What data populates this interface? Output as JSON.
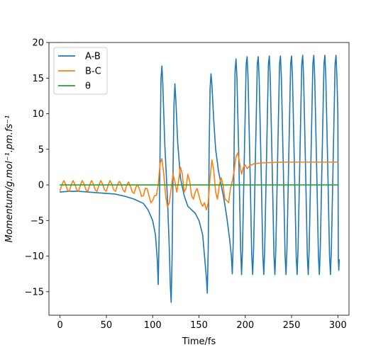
{
  "colors": {
    "series_A_B": "#1f77b4",
    "series_B_C": "#ff7f0e",
    "series_theta": "#2ca02c"
  },
  "chart_data": {
    "type": "line",
    "title": "",
    "xlabel": "Time/fs",
    "ylabel": "Momentum/g.mol⁻¹.pm.fs⁻¹",
    "xlim": [
      -12,
      312
    ],
    "ylim": [
      -18.3,
      20
    ],
    "x_ticks": [
      0,
      50,
      100,
      150,
      200,
      250,
      300
    ],
    "y_ticks": [
      -15,
      -10,
      -5,
      0,
      5,
      10,
      15,
      20
    ],
    "x_tick_labels": [
      "0",
      "50",
      "100",
      "150",
      "200",
      "250",
      "300"
    ],
    "y_tick_labels": [
      "−15",
      "−10",
      "−5",
      "0",
      "5",
      "10",
      "15",
      "20"
    ],
    "grid": false,
    "legend": {
      "placement": "upper-left",
      "entries": [
        "A-B",
        "B-C",
        "θ"
      ]
    },
    "series": [
      {
        "name": "A-B",
        "color": "#1f77b4",
        "points": [
          [
            0,
            -1.0
          ],
          [
            10,
            -0.9
          ],
          [
            20,
            -0.9
          ],
          [
            30,
            -1.0
          ],
          [
            40,
            -1.1
          ],
          [
            50,
            -1.2
          ],
          [
            60,
            -1.3
          ],
          [
            70,
            -1.6
          ],
          [
            80,
            -2.0
          ],
          [
            90,
            -2.6
          ],
          [
            95,
            -3.5
          ],
          [
            100,
            -5.0
          ],
          [
            103,
            -7.0
          ],
          [
            105,
            -10.5
          ],
          [
            106,
            -14.0
          ],
          [
            107,
            -7.0
          ],
          [
            108,
            5.0
          ],
          [
            109,
            15.0
          ],
          [
            110,
            16.7
          ],
          [
            111,
            14.0
          ],
          [
            113,
            6.0
          ],
          [
            116,
            -2.0
          ],
          [
            118,
            -9.0
          ],
          [
            119,
            -14.0
          ],
          [
            120,
            -16.5
          ],
          [
            121,
            -10.0
          ],
          [
            122,
            2.0
          ],
          [
            123,
            11.0
          ],
          [
            124,
            14.2
          ],
          [
            125,
            12.0
          ],
          [
            127,
            6.0
          ],
          [
            130,
            1.0
          ],
          [
            134,
            -1.5
          ],
          [
            138,
            -3.0
          ],
          [
            142,
            -3.5
          ],
          [
            146,
            -4.0
          ],
          [
            150,
            -5.0
          ],
          [
            154,
            -7.0
          ],
          [
            156,
            -10.0
          ],
          [
            158,
            -13.0
          ],
          [
            159,
            -15.2
          ],
          [
            160,
            -9.0
          ],
          [
            161,
            5.0
          ],
          [
            162,
            13.5
          ],
          [
            163,
            15.6
          ],
          [
            164,
            14.0
          ],
          [
            166,
            9.0
          ],
          [
            168,
            5.0
          ],
          [
            171,
            2.0
          ],
          [
            174,
            0.0
          ],
          [
            177,
            -2.0
          ],
          [
            180,
            -4.5
          ],
          [
            183,
            -7.5
          ],
          [
            185,
            -10.0
          ],
          [
            186,
            -12.5
          ],
          [
            187,
            -8.0
          ],
          [
            188,
            6.0
          ],
          [
            189,
            16.0
          ],
          [
            190,
            17.7
          ],
          [
            191,
            15.0
          ],
          [
            193,
            4.0
          ],
          [
            195,
            -9.0
          ],
          [
            196,
            -12.6
          ],
          [
            197,
            -9.0
          ],
          [
            199,
            4.0
          ],
          [
            201,
            17.0
          ],
          [
            202,
            18.0
          ],
          [
            203,
            15.0
          ],
          [
            205,
            3.0
          ],
          [
            207,
            -10.0
          ],
          [
            208,
            -12.6
          ],
          [
            209,
            -9.0
          ],
          [
            211,
            4.0
          ],
          [
            213,
            17.0
          ],
          [
            214,
            18.0
          ],
          [
            215,
            15.0
          ],
          [
            217,
            3.0
          ],
          [
            219,
            -10.0
          ],
          [
            220,
            -12.6
          ],
          [
            221,
            -9.0
          ],
          [
            223,
            4.0
          ],
          [
            225,
            17.0
          ],
          [
            226,
            18.1
          ],
          [
            227,
            15.0
          ],
          [
            229,
            3.0
          ],
          [
            231,
            -10.0
          ],
          [
            232,
            -12.6
          ],
          [
            233,
            -9.0
          ],
          [
            235,
            4.0
          ],
          [
            237,
            17.0
          ],
          [
            238,
            18.1
          ],
          [
            239,
            15.0
          ],
          [
            241,
            3.0
          ],
          [
            243,
            -10.0
          ],
          [
            244,
            -12.6
          ],
          [
            245,
            -9.0
          ],
          [
            247,
            4.0
          ],
          [
            249,
            17.0
          ],
          [
            250,
            18.1
          ],
          [
            251,
            15.0
          ],
          [
            253,
            3.0
          ],
          [
            255,
            -10.0
          ],
          [
            256,
            -12.6
          ],
          [
            257,
            -9.0
          ],
          [
            259,
            4.0
          ],
          [
            261,
            17.0
          ],
          [
            262,
            18.2
          ],
          [
            263,
            15.0
          ],
          [
            265,
            3.0
          ],
          [
            267,
            -10.0
          ],
          [
            268,
            -12.6
          ],
          [
            269,
            -9.0
          ],
          [
            271,
            4.0
          ],
          [
            273,
            17.0
          ],
          [
            274,
            18.2
          ],
          [
            275,
            15.0
          ],
          [
            277,
            3.0
          ],
          [
            279,
            -10.0
          ],
          [
            280,
            -12.6
          ],
          [
            281,
            -9.0
          ],
          [
            283,
            4.0
          ],
          [
            285,
            17.0
          ],
          [
            286,
            18.2
          ],
          [
            287,
            15.0
          ],
          [
            289,
            3.0
          ],
          [
            291,
            -10.0
          ],
          [
            292,
            -12.6
          ],
          [
            293,
            -9.0
          ],
          [
            295,
            4.0
          ],
          [
            297,
            17.0
          ],
          [
            298,
            18.2
          ],
          [
            299,
            15.0
          ],
          [
            300,
            10.0
          ],
          [
            300.5,
            -10.5
          ],
          [
            301,
            -12.0
          ],
          [
            301.5,
            -10.5
          ]
        ]
      },
      {
        "name": "B-C",
        "color": "#ff7f0e",
        "points": [
          [
            0,
            -0.8
          ],
          [
            2,
            0.0
          ],
          [
            4,
            0.6
          ],
          [
            6,
            0.1
          ],
          [
            8,
            -0.7
          ],
          [
            10,
            -0.9
          ],
          [
            12,
            0.0
          ],
          [
            14,
            0.6
          ],
          [
            16,
            0.1
          ],
          [
            18,
            -0.7
          ],
          [
            20,
            -0.9
          ],
          [
            22,
            0.0
          ],
          [
            24,
            0.6
          ],
          [
            26,
            0.1
          ],
          [
            28,
            -0.7
          ],
          [
            30,
            -0.9
          ],
          [
            32,
            0.0
          ],
          [
            34,
            0.6
          ],
          [
            36,
            0.1
          ],
          [
            38,
            -0.7
          ],
          [
            40,
            -0.9
          ],
          [
            42,
            0.0
          ],
          [
            44,
            0.6
          ],
          [
            46,
            0.1
          ],
          [
            48,
            -0.7
          ],
          [
            50,
            -0.9
          ],
          [
            52,
            0.0
          ],
          [
            54,
            0.6
          ],
          [
            56,
            0.1
          ],
          [
            58,
            -0.7
          ],
          [
            60,
            -0.9
          ],
          [
            62,
            0.0
          ],
          [
            64,
            0.5
          ],
          [
            66,
            0.1
          ],
          [
            68,
            -0.7
          ],
          [
            70,
            -1.0
          ],
          [
            72,
            0.0
          ],
          [
            74,
            0.4
          ],
          [
            76,
            -0.2
          ],
          [
            78,
            -1.0
          ],
          [
            80,
            -1.2
          ],
          [
            82,
            -0.3
          ],
          [
            84,
            0.0
          ],
          [
            86,
            -0.7
          ],
          [
            88,
            -1.6
          ],
          [
            90,
            -1.5
          ],
          [
            92,
            -0.5
          ],
          [
            94,
            -0.5
          ],
          [
            96,
            -1.5
          ],
          [
            98,
            -2.5
          ],
          [
            100,
            -2.2
          ],
          [
            102,
            -1.5
          ],
          [
            104,
            -1.5
          ],
          [
            106,
            0.0
          ],
          [
            108,
            3.0
          ],
          [
            110,
            3.7
          ],
          [
            112,
            1.5
          ],
          [
            114,
            -1.5
          ],
          [
            116,
            -3.1
          ],
          [
            118,
            -2.5
          ],
          [
            120,
            -0.5
          ],
          [
            122,
            1.5
          ],
          [
            124,
            0.5
          ],
          [
            126,
            -1.0
          ],
          [
            128,
            0.5
          ],
          [
            130,
            2.5
          ],
          [
            132,
            1.5
          ],
          [
            134,
            -1.0
          ],
          [
            136,
            -0.5
          ],
          [
            138,
            1.5
          ],
          [
            140,
            0.5
          ],
          [
            142,
            -1.5
          ],
          [
            144,
            -2.0
          ],
          [
            146,
            -1.0
          ],
          [
            148,
            -0.5
          ],
          [
            150,
            -1.5
          ],
          [
            152,
            -2.5
          ],
          [
            154,
            -3.0
          ],
          [
            156,
            -2.5
          ],
          [
            158,
            -3.5
          ],
          [
            160,
            -2.5
          ],
          [
            162,
            1.0
          ],
          [
            164,
            3.5
          ],
          [
            166,
            2.0
          ],
          [
            168,
            -1.0
          ],
          [
            170,
            -2.0
          ],
          [
            172,
            0.0
          ],
          [
            174,
            1.0
          ],
          [
            176,
            0.0
          ],
          [
            178,
            -2.0
          ],
          [
            180,
            -2.2
          ],
          [
            182,
            -2.5
          ],
          [
            184,
            -0.5
          ],
          [
            186,
            0.5
          ],
          [
            188,
            2.0
          ],
          [
            190,
            4.0
          ],
          [
            192,
            4.5
          ],
          [
            194,
            3.0
          ],
          [
            196,
            1.5
          ],
          [
            198,
            2.5
          ],
          [
            200,
            2.8
          ],
          [
            202,
            2.3
          ],
          [
            205,
            2.7
          ],
          [
            210,
            3.0
          ],
          [
            220,
            3.1
          ],
          [
            240,
            3.2
          ],
          [
            260,
            3.2
          ],
          [
            280,
            3.2
          ],
          [
            300,
            3.2
          ]
        ]
      },
      {
        "name": "θ",
        "color": "#2ca02c",
        "points": [
          [
            0,
            0.0
          ],
          [
            300,
            0.0
          ]
        ]
      }
    ]
  }
}
